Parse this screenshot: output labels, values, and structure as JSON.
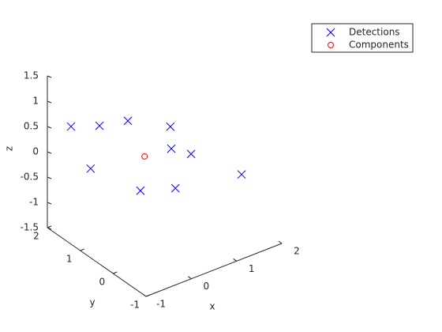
{
  "chart_data": {
    "type": "scatter3d",
    "xlabel": "x",
    "ylabel": "y",
    "zlabel": "z",
    "xlim": [
      -1,
      2
    ],
    "ylim": [
      -1,
      2
    ],
    "zlim": [
      -1.5,
      1.5
    ],
    "xticks": [
      -1,
      0,
      1,
      2
    ],
    "yticks": [
      -1,
      0,
      1,
      2
    ],
    "zticks": [
      -1.5,
      -1,
      -0.5,
      0,
      0.5,
      1,
      1.5
    ],
    "legend": "top-right",
    "series": [
      {
        "name": "Detections",
        "color": "#0000ff",
        "marker": "x",
        "x": [
          -0.84,
          -0.72,
          -0.31,
          0.41,
          0.14,
          0.94,
          1.62,
          -0.77,
          -0.76,
          -0.06
        ],
        "y": [
          1.5,
          0.8,
          0.5,
          0.2,
          -0.2,
          0.3,
          -0.3,
          1.0,
          -0.5,
          -0.6
        ],
        "z": [
          0.67,
          0.96,
          1.05,
          0.82,
          0.66,
          0.05,
          -0.32,
          0.04,
          0.28,
          0.13
        ]
      },
      {
        "name": "Components",
        "color": "#ff0000",
        "marker": "o",
        "x": [
          -0.16
        ],
        "y": [
          0.2
        ],
        "z": [
          0.43
        ]
      }
    ]
  }
}
